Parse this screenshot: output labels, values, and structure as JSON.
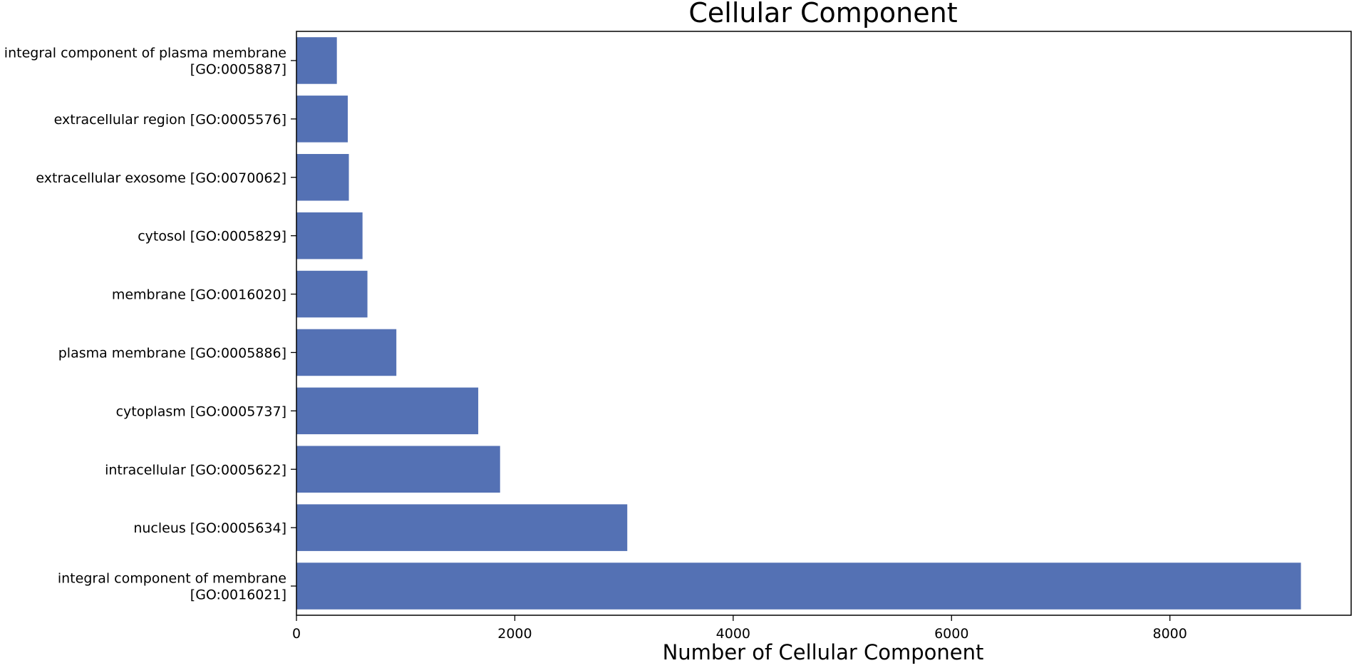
{
  "chart_data": {
    "type": "bar",
    "orientation": "horizontal",
    "title": "Cellular Component",
    "xlabel": "Number of Cellular Component",
    "ylabel": "",
    "categories": [
      [
        "integral component of plasma membrane",
        "[GO:0005887]"
      ],
      [
        "extracellular region [GO:0005576]"
      ],
      [
        "extracellular exosome [GO:0070062]"
      ],
      [
        "cytosol [GO:0005829]"
      ],
      [
        "membrane [GO:0016020]"
      ],
      [
        "plasma membrane [GO:0005886]"
      ],
      [
        "cytoplasm [GO:0005737]"
      ],
      [
        "intracellular [GO:0005622]"
      ],
      [
        "nucleus [GO:0005634]"
      ],
      [
        "integral component of membrane",
        "[GO:0016021]"
      ]
    ],
    "values": [
      370,
      470,
      480,
      605,
      650,
      915,
      1665,
      1865,
      3030,
      9200
    ],
    "xlim": [
      0,
      9660
    ],
    "xticks": [
      0,
      2000,
      4000,
      6000,
      8000
    ],
    "grid": false,
    "bar_color": "#5471b4"
  }
}
